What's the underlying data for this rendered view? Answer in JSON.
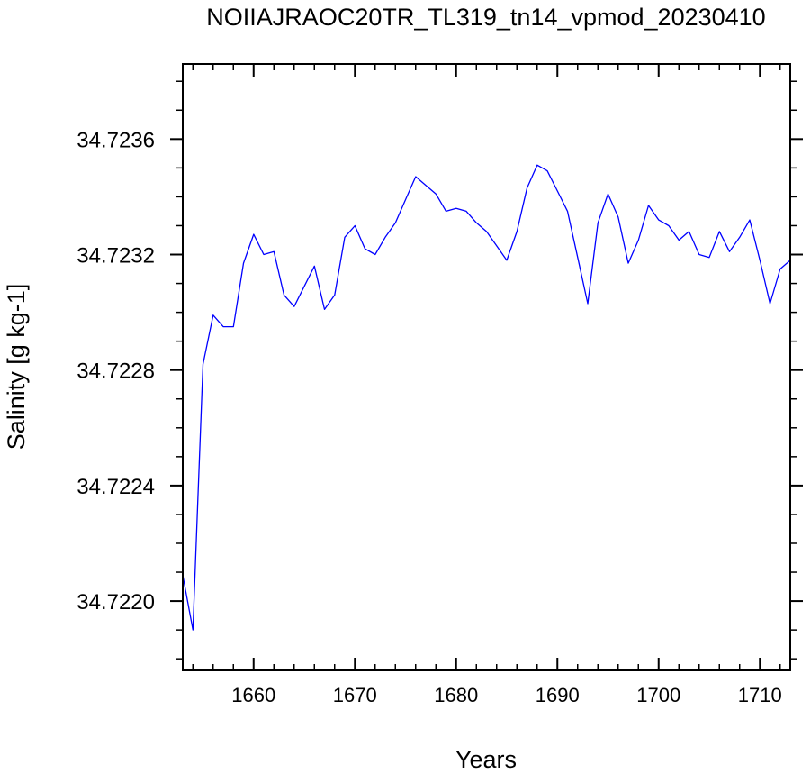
{
  "chart_data": {
    "type": "line",
    "title": "NOIIAJRAOC20TR_TL319_tn14_vpmod_20230410",
    "xlabel": "Years",
    "ylabel": "Salinity [g kg-1]",
    "xlim": [
      1653,
      1713
    ],
    "ylim": [
      34.72176,
      34.72386
    ],
    "x_ticks": [
      1660,
      1670,
      1680,
      1690,
      1700,
      1710
    ],
    "x_tick_labels": [
      "1660",
      "1670",
      "1680",
      "1690",
      "1700",
      "1710"
    ],
    "y_ticks": [
      34.722,
      34.7224,
      34.7228,
      34.7232,
      34.7236
    ],
    "y_tick_labels": [
      "34.7220",
      "34.7224",
      "34.7228",
      "34.7232",
      "34.7236"
    ],
    "line_color": "#0000ff",
    "grid": false,
    "series": [
      {
        "x": [
          1653,
          1654,
          1655,
          1656,
          1657,
          1658,
          1659,
          1660,
          1661,
          1662,
          1663,
          1664,
          1665,
          1666,
          1667,
          1668,
          1669,
          1670,
          1671,
          1672,
          1673,
          1674,
          1675,
          1676,
          1677,
          1678,
          1679,
          1680,
          1681,
          1682,
          1683,
          1684,
          1685,
          1686,
          1687,
          1688,
          1689,
          1690,
          1691,
          1692,
          1693,
          1694,
          1695,
          1696,
          1697,
          1698,
          1699,
          1700,
          1701,
          1702,
          1703,
          1704,
          1705,
          1706,
          1707,
          1708,
          1709,
          1710,
          1711,
          1712,
          1713
        ],
        "values": [
          34.72209,
          34.7219,
          34.72282,
          34.72299,
          34.72295,
          34.72295,
          34.72317,
          34.72327,
          34.7232,
          34.72321,
          34.72306,
          34.72302,
          34.72309,
          34.72316,
          34.72301,
          34.72306,
          34.72326,
          34.7233,
          34.72322,
          34.7232,
          34.72326,
          34.72331,
          34.72339,
          34.72347,
          34.72344,
          34.72341,
          34.72335,
          34.72336,
          34.72335,
          34.72331,
          34.72328,
          34.72323,
          34.72318,
          34.72328,
          34.72343,
          34.72351,
          34.72349,
          34.72342,
          34.72335,
          34.72319,
          34.72303,
          34.72331,
          34.72341,
          34.72333,
          34.72317,
          34.72325,
          34.72337,
          34.72332,
          34.7233,
          34.72325,
          34.72328,
          34.7232,
          34.72319,
          34.72328,
          34.72321,
          34.72326,
          34.72332,
          34.72318,
          34.72303,
          34.72315,
          34.72318
        ]
      }
    ]
  }
}
